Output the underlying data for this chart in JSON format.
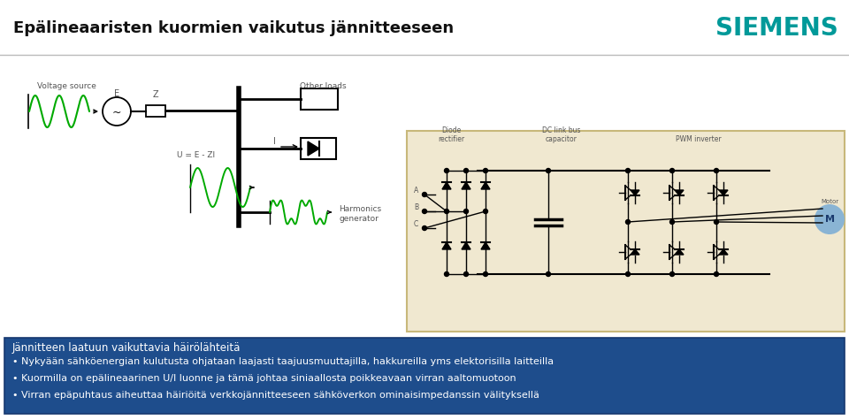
{
  "title": "Epälineaaristen kuormien vaikutus jännitteeseen",
  "siemens_color": "#009999",
  "siemens_text": "SIEMENS",
  "background_color": "#FFFFFF",
  "header_line_color": "#BBBBBB",
  "footer_box_color": "#1E4D8C",
  "footer_text_color": "#FFFFFF",
  "footer_title": "Jännitteen laatuun vaikuttavia häirölähteitä",
  "bullet_lines": [
    "• Nykyään sähköenergian kulutusta ohjataan laajasti taajuusmuuttajilla, hakkureilla yms elektorisilla laitteilla",
    "• Kuormilla on epälineaarinen U/I luonne ja tämä johtaa siniaallosta poikkeavaan virran aaltomuotoon",
    "• Virran epäpuhtaus aiheuttaa häiriöitä verkkojännitteeseen sähköverkon ominaisimpedanssin välityksellä"
  ],
  "title_fontsize": 13,
  "siemens_fontsize": 20,
  "footer_title_fontsize": 8.5,
  "bullet_fontsize": 8,
  "wave_color": "#00AA00",
  "circuit_line_color": "#000000",
  "right_box_bg": "#F0E8D0",
  "right_box_border": "#C8B87A"
}
